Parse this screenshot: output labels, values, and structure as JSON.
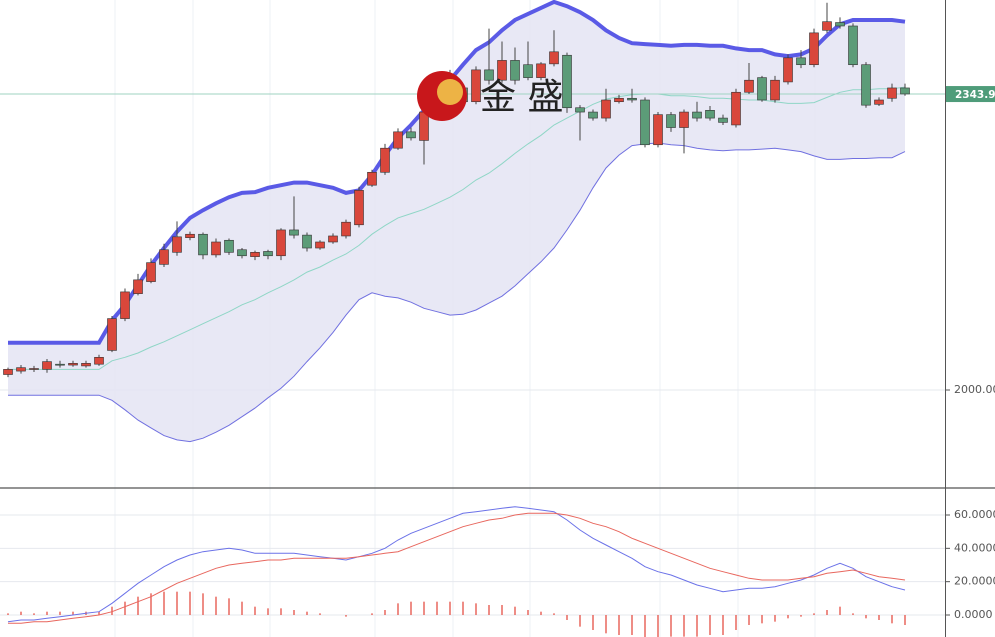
{
  "chart_data": [
    {
      "type": "candlestick",
      "watermark": "金 盛",
      "open": [
        2018,
        2022,
        2024,
        2024,
        2030,
        2029,
        2028,
        2030,
        2046,
        2083,
        2112,
        2126,
        2146,
        2160,
        2177,
        2181,
        2157,
        2174,
        2163,
        2155,
        2161,
        2156,
        2186,
        2180,
        2165,
        2172,
        2179,
        2192,
        2238,
        2253,
        2281,
        2300,
        2290,
        2323,
        2343,
        2351,
        2335,
        2372,
        2360,
        2383,
        2378,
        2363,
        2379,
        2389,
        2328,
        2323,
        2316,
        2335,
        2339,
        2337,
        2285,
        2320,
        2305,
        2323,
        2325,
        2316,
        2308,
        2346,
        2363,
        2337,
        2358,
        2386,
        2378,
        2418,
        2427,
        2423,
        2378,
        2332,
        2339,
        2351
      ],
      "high": [
        2026,
        2029,
        2028,
        2036,
        2034,
        2034,
        2034,
        2041,
        2086,
        2118,
        2135,
        2153,
        2170,
        2196,
        2184,
        2183,
        2176,
        2176,
        2165,
        2162,
        2163,
        2188,
        2225,
        2183,
        2174,
        2182,
        2198,
        2236,
        2256,
        2286,
        2304,
        2305,
        2340,
        2355,
        2372,
        2355,
        2376,
        2420,
        2405,
        2398,
        2405,
        2381,
        2418,
        2392,
        2331,
        2326,
        2350,
        2343,
        2350,
        2340,
        2323,
        2323,
        2326,
        2335,
        2330,
        2320,
        2350,
        2380,
        2365,
        2365,
        2390,
        2395,
        2420,
        2450,
        2433,
        2426,
        2381,
        2340,
        2356,
        2356
      ],
      "low": [
        2015,
        2019,
        2021,
        2020,
        2026,
        2027,
        2026,
        2028,
        2044,
        2080,
        2110,
        2124,
        2143,
        2156,
        2174,
        2152,
        2154,
        2157,
        2153,
        2151,
        2152,
        2151,
        2176,
        2161,
        2163,
        2170,
        2176,
        2189,
        2236,
        2250,
        2279,
        2290,
        2262,
        2318,
        2338,
        2330,
        2332,
        2355,
        2357,
        2355,
        2360,
        2360,
        2376,
        2322,
        2290,
        2313,
        2312,
        2333,
        2334,
        2282,
        2282,
        2300,
        2275,
        2312,
        2313,
        2308,
        2305,
        2344,
        2335,
        2334,
        2355,
        2374,
        2375,
        2415,
        2420,
        2375,
        2328,
        2330,
        2335,
        2342
      ],
      "close": [
        2024,
        2026,
        2025,
        2033,
        2029,
        2031,
        2031,
        2038,
        2083,
        2114,
        2128,
        2148,
        2163,
        2178,
        2181,
        2157,
        2172,
        2160,
        2156,
        2160,
        2156,
        2186,
        2180,
        2165,
        2172,
        2179,
        2195,
        2232,
        2253,
        2281,
        2300,
        2293,
        2323,
        2349,
        2360,
        2335,
        2372,
        2360,
        2383,
        2360,
        2363,
        2379,
        2393,
        2328,
        2323,
        2316,
        2337,
        2339,
        2337,
        2285,
        2320,
        2305,
        2323,
        2316,
        2316,
        2311,
        2346,
        2360,
        2337,
        2360,
        2386,
        2378,
        2415,
        2428,
        2423,
        2378,
        2331,
        2337,
        2351,
        2344
      ],
      "up_color": "#d9473b",
      "down_color": "#5c9c78",
      "bands": [
        {
          "color": "#5a5ae6",
          "values": [
            2055,
            2055,
            2055,
            2055,
            2055,
            2055,
            2055,
            2055,
            2081,
            2099,
            2122,
            2145,
            2165,
            2184,
            2200,
            2209,
            2217,
            2224,
            2229,
            2230,
            2235,
            2238,
            2241,
            2241,
            2238,
            2235,
            2229,
            2232,
            2250,
            2273,
            2293,
            2308,
            2325,
            2343,
            2360,
            2378,
            2395,
            2404,
            2418,
            2430,
            2437,
            2444,
            2451,
            2446,
            2439,
            2430,
            2418,
            2409,
            2403,
            2402,
            2401,
            2400,
            2401,
            2401,
            2400,
            2400,
            2397,
            2395,
            2395,
            2390,
            2388,
            2390,
            2397,
            2412,
            2425,
            2430,
            2430,
            2430,
            2430,
            2428
          ]
        },
        {
          "color": "#8fd6c6",
          "values": [
            2024,
            2024,
            2024,
            2024,
            2024,
            2024,
            2024,
            2024,
            2034,
            2038,
            2043,
            2050,
            2056,
            2063,
            2070,
            2077,
            2084,
            2091,
            2099,
            2105,
            2113,
            2120,
            2128,
            2137,
            2143,
            2151,
            2158,
            2168,
            2181,
            2191,
            2200,
            2205,
            2210,
            2217,
            2224,
            2233,
            2244,
            2252,
            2263,
            2275,
            2286,
            2296,
            2308,
            2316,
            2324,
            2332,
            2338,
            2341,
            2343,
            2344,
            2344,
            2342,
            2342,
            2341,
            2339,
            2339,
            2338,
            2337,
            2337,
            2335,
            2333,
            2333,
            2334,
            2340,
            2346,
            2349,
            2349,
            2350,
            2350,
            2352
          ]
        },
        {
          "color": "#7070e0",
          "values": [
            1994,
            1994,
            1994,
            1994,
            1994,
            1994,
            1994,
            1994,
            1988,
            1977,
            1965,
            1956,
            1947,
            1942,
            1940,
            1944,
            1951,
            1959,
            1969,
            1979,
            1991,
            2002,
            2016,
            2033,
            2049,
            2067,
            2087,
            2105,
            2113,
            2109,
            2107,
            2102,
            2095,
            2091,
            2087,
            2088,
            2093,
            2101,
            2109,
            2121,
            2135,
            2149,
            2165,
            2186,
            2209,
            2235,
            2258,
            2273,
            2284,
            2286,
            2287,
            2285,
            2284,
            2281,
            2279,
            2278,
            2279,
            2279,
            2280,
            2281,
            2279,
            2277,
            2272,
            2268,
            2268,
            2269,
            2269,
            2270,
            2270,
            2277
          ]
        }
      ],
      "last_price": 2343.91,
      "ylim": [
        1887.3,
        2453.2
      ],
      "yticks": [
        {
          "value": 2000,
          "label": "2000.00"
        }
      ]
    },
    {
      "type": "macd",
      "series": [
        {
          "color": "#6b72e8",
          "values": [
            -4,
            -3,
            -3,
            -2,
            -1,
            0,
            1,
            2,
            7,
            13,
            19,
            24,
            29,
            33,
            36,
            38,
            39,
            40,
            39,
            37,
            37,
            37,
            37,
            36,
            35,
            34,
            33,
            35,
            37,
            40,
            45,
            49,
            52,
            55,
            58,
            61,
            62,
            63,
            64,
            65,
            64,
            63,
            62,
            57,
            51,
            46,
            42,
            38,
            34,
            29,
            26,
            24,
            21,
            18,
            16,
            14,
            15,
            16,
            16,
            17,
            19,
            21,
            24,
            28,
            31,
            28,
            23,
            20,
            17,
            15
          ]
        },
        {
          "color": "#e8675e",
          "values": [
            -5,
            -5,
            -4,
            -4,
            -3,
            -2,
            -1,
            0,
            2,
            5,
            8,
            11,
            15,
            19,
            22,
            25,
            28,
            30,
            31,
            32,
            33,
            33,
            34,
            34,
            34,
            34,
            34,
            35,
            36,
            37,
            38,
            41,
            44,
            47,
            50,
            53,
            55,
            57,
            58,
            60,
            61,
            61,
            61,
            60,
            58,
            55,
            53,
            50,
            46,
            43,
            40,
            37,
            34,
            31,
            28,
            26,
            24,
            22,
            21,
            21,
            21,
            22,
            23,
            25,
            26,
            27,
            25,
            23,
            22,
            21
          ]
        }
      ],
      "histogram": {
        "color": "#e8675e",
        "values": [
          1,
          2,
          1,
          2,
          2,
          2,
          2,
          2,
          5,
          8,
          11,
          13,
          14,
          14,
          14,
          13,
          11,
          10,
          8,
          5,
          4,
          4,
          3,
          2,
          1,
          0,
          -1,
          0,
          1,
          3,
          7,
          8,
          8,
          8,
          8,
          8,
          7,
          6,
          6,
          5,
          3,
          2,
          1,
          -3,
          -7,
          -9,
          -11,
          -12,
          -12,
          -14,
          -14,
          -13,
          -13,
          -13,
          -12,
          -12,
          -9,
          -6,
          -5,
          -4,
          -2,
          -1,
          1,
          3,
          5,
          1,
          -2,
          -3,
          -5,
          -6
        ]
      },
      "ylim": [
        -13.2,
        75.6
      ],
      "yticks": [
        {
          "value": 0,
          "label": "0.0000"
        },
        {
          "value": 20,
          "label": "20.0000"
        },
        {
          "value": 40,
          "label": "40.0000"
        },
        {
          "value": 60,
          "label": "60.0000"
        }
      ]
    }
  ]
}
